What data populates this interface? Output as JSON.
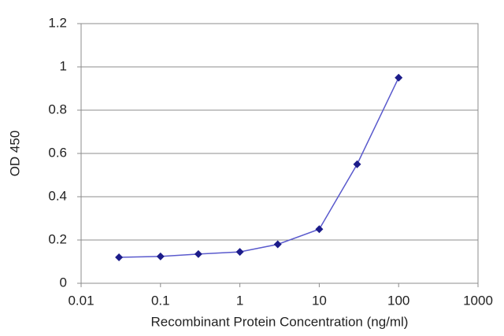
{
  "chart_data": {
    "type": "line",
    "x_label": "Recombinant Protein Concentration (ng/ml)",
    "y_label": "OD 450",
    "x": [
      0.03,
      0.1,
      0.3,
      1,
      3,
      10,
      30,
      100
    ],
    "series": [
      {
        "color": "#5a5acd",
        "marker_color": "#1c1c8a",
        "values": [
          0.12,
          0.124,
          0.135,
          0.145,
          0.18,
          0.25,
          0.55,
          0.95
        ]
      }
    ],
    "x_log": true,
    "xlim": [
      0.01,
      1000
    ],
    "xticks": [
      0.01,
      0.1,
      1,
      10,
      100,
      1000
    ],
    "ylim": [
      0,
      1.2
    ],
    "yticks": [
      0,
      0.2,
      0.4,
      0.6,
      0.8,
      1,
      1.2
    ],
    "grid": true
  }
}
